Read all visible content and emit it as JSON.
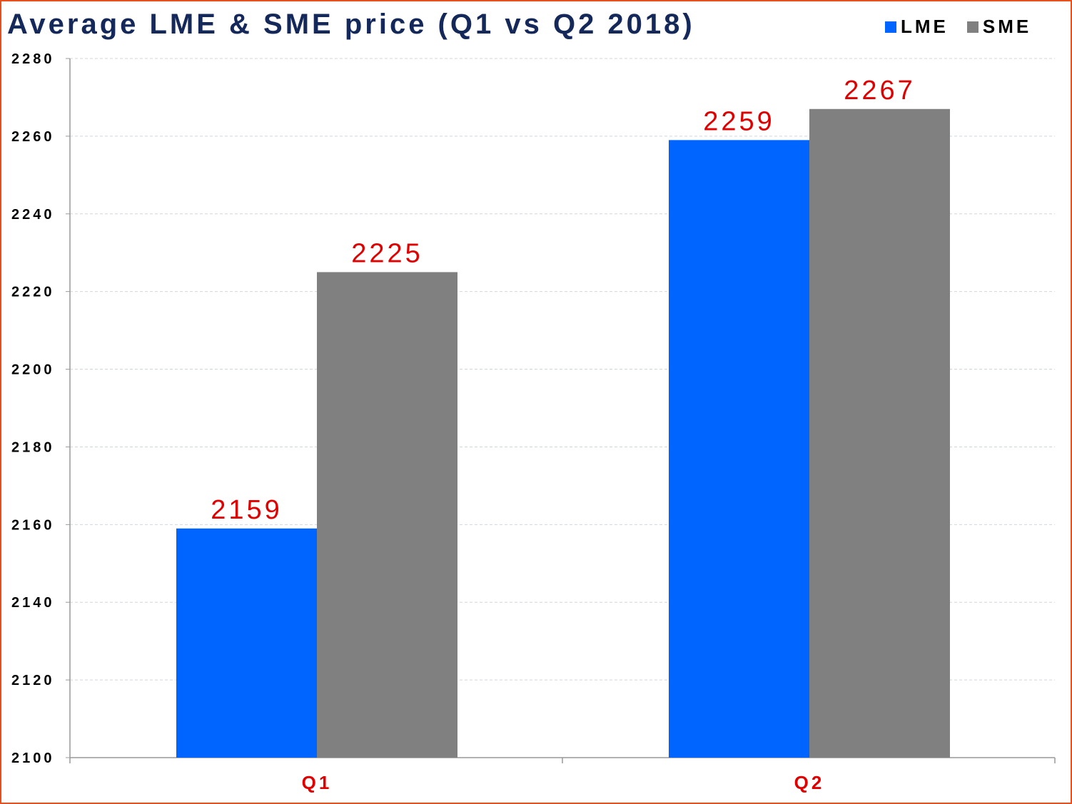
{
  "chart_data": {
    "type": "bar",
    "title": "Average LME & SME price (Q1 vs Q2 2018)",
    "categories": [
      "Q1",
      "Q2"
    ],
    "series": [
      {
        "name": "LME",
        "values": [
          2159,
          2259
        ],
        "color": "#0064ff"
      },
      {
        "name": "SME",
        "values": [
          2225,
          2267
        ],
        "color": "#808080"
      }
    ],
    "ylim": [
      2100,
      2280
    ],
    "yticks": [
      2100,
      2120,
      2140,
      2160,
      2180,
      2200,
      2220,
      2240,
      2260,
      2280
    ],
    "xlabel": "",
    "ylabel": "",
    "legend_position": "top-right",
    "grid": true
  },
  "colors": {
    "grid": "#d0d6e0",
    "grid_behind": "#e05050",
    "axis": "#999999",
    "label_red": "#e00000",
    "title": "#14285a",
    "border": "#e8501e"
  }
}
